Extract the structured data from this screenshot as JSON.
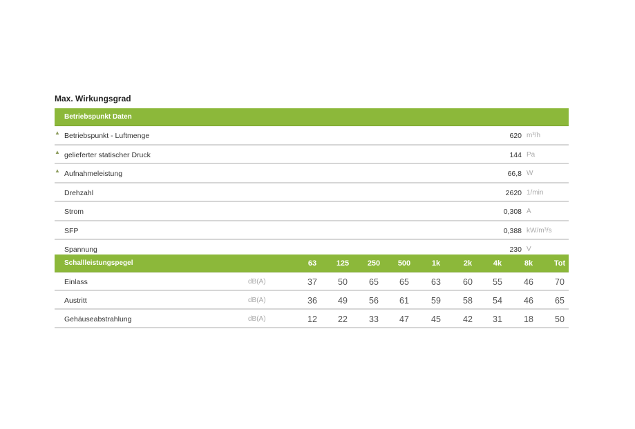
{
  "title": "Max. Wirkungsgrad",
  "operating": {
    "header": "Betriebspunkt Daten",
    "rows": [
      {
        "label": "Betriebspunkt - Luftmenge",
        "value": "620",
        "unit": "m³/h",
        "marker": "triangle-icon"
      },
      {
        "label": "gelieferter statischer Druck",
        "value": "144",
        "unit": "Pa",
        "marker": "triangle-icon"
      },
      {
        "label": "Aufnahmeleistung",
        "value": "66,8",
        "unit": "W",
        "marker": "triangle-icon"
      },
      {
        "label": "Drehzahl",
        "value": "2620",
        "unit": "1/min"
      },
      {
        "label": "Strom",
        "value": "0,308",
        "unit": "A"
      },
      {
        "label": "SFP",
        "value": "0,388",
        "unit": "kW/m³/s"
      },
      {
        "label": "Spannung",
        "value": "230",
        "unit": "V"
      }
    ]
  },
  "sound": {
    "header": "Schallleistungspegel",
    "bands": [
      "63",
      "125",
      "250",
      "500",
      "1k",
      "2k",
      "4k",
      "8k",
      "Tot"
    ],
    "rows": [
      {
        "label": "Einlass",
        "unit": "dB(A)",
        "values": [
          "37",
          "50",
          "65",
          "65",
          "63",
          "60",
          "55",
          "46",
          "70"
        ]
      },
      {
        "label": "Austritt",
        "unit": "dB(A)",
        "values": [
          "36",
          "49",
          "56",
          "61",
          "59",
          "58",
          "54",
          "46",
          "65"
        ]
      },
      {
        "label": "Gehäuseabstrahlung",
        "unit": "dB(A)",
        "values": [
          "12",
          "22",
          "33",
          "47",
          "45",
          "42",
          "31",
          "18",
          "50"
        ]
      }
    ]
  },
  "accent": "#8cb83a"
}
